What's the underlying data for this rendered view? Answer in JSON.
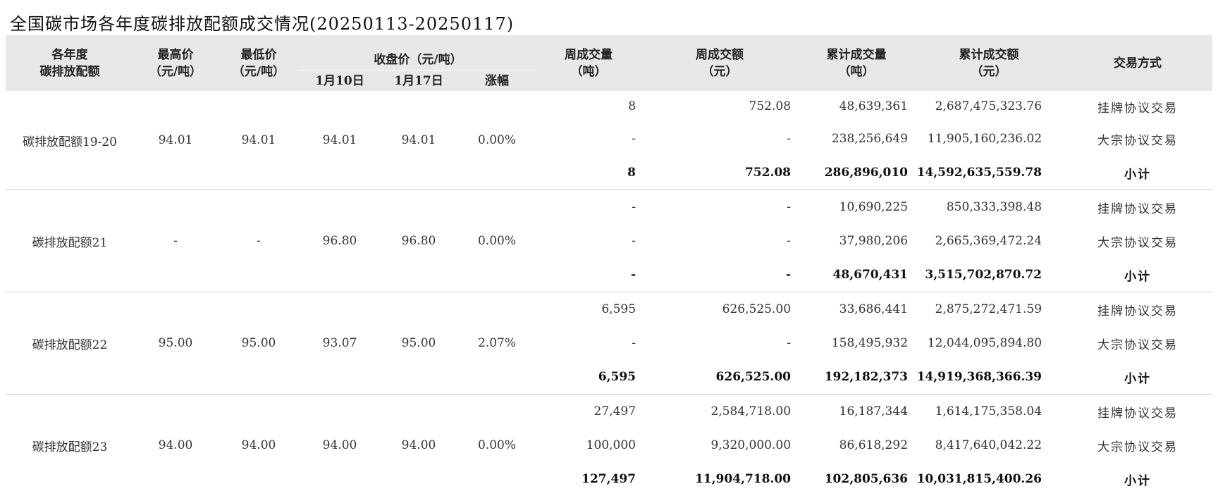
{
  "title": "全国碳市场各年度碳排放配额成交情况(20250113-20250117)",
  "headers": {
    "name": [
      "各年度",
      "碳排放配额"
    ],
    "high": [
      "最高价",
      "（元/吨）"
    ],
    "low": [
      "最低价",
      "（元/吨）"
    ],
    "close_group": "收盘价（元/吨）",
    "close_prev": "1月10日",
    "close_cur": "1月17日",
    "change": "涨幅",
    "week_vol": [
      "周成交量",
      "（吨）"
    ],
    "week_amt": [
      "周成交额",
      "（元）"
    ],
    "cum_vol": [
      "累计成交量",
      "（吨）"
    ],
    "cum_amt": [
      "累计成交额",
      "（元）"
    ],
    "method": "交易方式"
  },
  "groups": [
    {
      "name": "碳排放配额19-20",
      "high": "94.01",
      "low": "94.01",
      "close_prev": "94.01",
      "close_cur": "94.01",
      "change": "0.00%",
      "rows": [
        {
          "week_vol": "8",
          "week_amt": "752.08",
          "cum_vol": "48,639,361",
          "cum_amt": "2,687,475,323.76",
          "method": "挂牌协议交易"
        },
        {
          "week_vol": "-",
          "week_amt": "-",
          "cum_vol": "238,256,649",
          "cum_amt": "11,905,160,236.02",
          "method": "大宗协议交易"
        },
        {
          "week_vol": "8",
          "week_amt": "752.08",
          "cum_vol": "286,896,010",
          "cum_amt": "14,592,635,559.78",
          "method": "小计"
        }
      ]
    },
    {
      "name": "碳排放配额21",
      "high": "-",
      "low": "-",
      "close_prev": "96.80",
      "close_cur": "96.80",
      "change": "0.00%",
      "rows": [
        {
          "week_vol": "-",
          "week_amt": "-",
          "cum_vol": "10,690,225",
          "cum_amt": "850,333,398.48",
          "method": "挂牌协议交易"
        },
        {
          "week_vol": "-",
          "week_amt": "-",
          "cum_vol": "37,980,206",
          "cum_amt": "2,665,369,472.24",
          "method": "大宗协议交易"
        },
        {
          "week_vol": "-",
          "week_amt": "-",
          "cum_vol": "48,670,431",
          "cum_amt": "3,515,702,870.72",
          "method": "小计"
        }
      ]
    },
    {
      "name": "碳排放配额22",
      "high": "95.00",
      "low": "95.00",
      "close_prev": "93.07",
      "close_cur": "95.00",
      "change": "2.07%",
      "rows": [
        {
          "week_vol": "6,595",
          "week_amt": "626,525.00",
          "cum_vol": "33,686,441",
          "cum_amt": "2,875,272,471.59",
          "method": "挂牌协议交易"
        },
        {
          "week_vol": "-",
          "week_amt": "-",
          "cum_vol": "158,495,932",
          "cum_amt": "12,044,095,894.80",
          "method": "大宗协议交易"
        },
        {
          "week_vol": "6,595",
          "week_amt": "626,525.00",
          "cum_vol": "192,182,373",
          "cum_amt": "14,919,368,366.39",
          "method": "小计"
        }
      ]
    },
    {
      "name": "碳排放配额23",
      "high": "94.00",
      "low": "94.00",
      "close_prev": "94.00",
      "close_cur": "94.00",
      "change": "0.00%",
      "rows": [
        {
          "week_vol": "27,497",
          "week_amt": "2,584,718.00",
          "cum_vol": "16,187,344",
          "cum_amt": "1,614,175,358.04",
          "method": "挂牌协议交易"
        },
        {
          "week_vol": "100,000",
          "week_amt": "9,320,000.00",
          "cum_vol": "86,618,292",
          "cum_amt": "8,417,640,042.22",
          "method": "大宗协议交易"
        },
        {
          "week_vol": "127,497",
          "week_amt": "11,904,718.00",
          "cum_vol": "102,805,636",
          "cum_amt": "10,031,815,400.26",
          "method": "小计"
        }
      ]
    }
  ]
}
